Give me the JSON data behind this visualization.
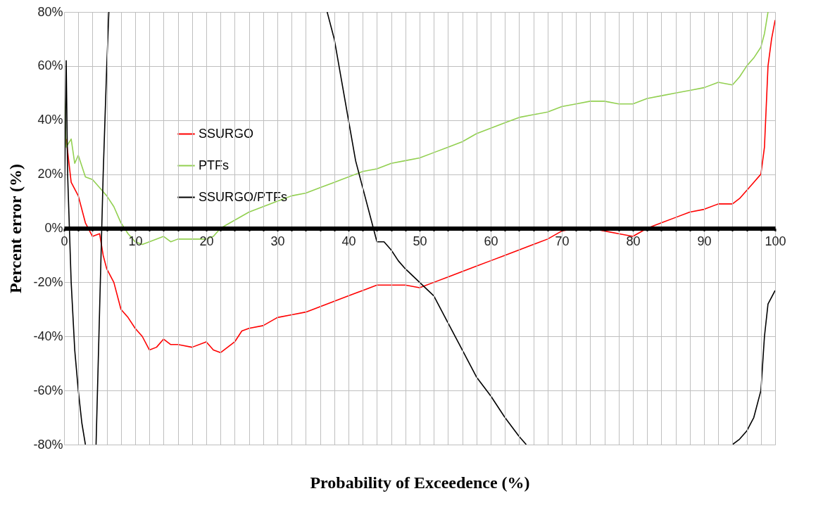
{
  "chart_data": {
    "type": "line",
    "xlabel": "Probability of Exceedence (%)",
    "ylabel": "Percent error (%)",
    "xlim": [
      0,
      100
    ],
    "ylim": [
      -80,
      80
    ],
    "xticks": [
      0,
      {
        "value": 2,
        "label": null
      },
      {
        "value": 4,
        "label": null
      },
      {
        "value": 6,
        "label": null
      },
      {
        "value": 8,
        "label": null
      },
      10,
      {
        "value": 12,
        "label": null
      },
      {
        "value": 14,
        "label": null
      },
      {
        "value": 16,
        "label": null
      },
      {
        "value": 18,
        "label": null
      },
      20,
      {
        "value": 22,
        "label": null
      },
      {
        "value": 24,
        "label": null
      },
      {
        "value": 26,
        "label": null
      },
      {
        "value": 28,
        "label": null
      },
      30,
      {
        "value": 32,
        "label": null
      },
      {
        "value": 34,
        "label": null
      },
      {
        "value": 36,
        "label": null
      },
      {
        "value": 38,
        "label": null
      },
      40,
      {
        "value": 42,
        "label": null
      },
      {
        "value": 44,
        "label": null
      },
      {
        "value": 46,
        "label": null
      },
      {
        "value": 48,
        "label": null
      },
      50,
      {
        "value": 52,
        "label": null
      },
      {
        "value": 54,
        "label": null
      },
      {
        "value": 56,
        "label": null
      },
      {
        "value": 58,
        "label": null
      },
      60,
      {
        "value": 62,
        "label": null
      },
      {
        "value": 64,
        "label": null
      },
      {
        "value": 66,
        "label": null
      },
      {
        "value": 68,
        "label": null
      },
      70,
      {
        "value": 72,
        "label": null
      },
      {
        "value": 74,
        "label": null
      },
      {
        "value": 76,
        "label": null
      },
      {
        "value": 78,
        "label": null
      },
      80,
      {
        "value": 82,
        "label": null
      },
      {
        "value": 84,
        "label": null
      },
      {
        "value": 86,
        "label": null
      },
      {
        "value": 88,
        "label": null
      },
      90,
      {
        "value": 92,
        "label": null
      },
      {
        "value": 94,
        "label": null
      },
      {
        "value": 96,
        "label": null
      },
      {
        "value": 98,
        "label": null
      },
      100
    ],
    "yticks": [
      {
        "value": -80,
        "label": "-80%"
      },
      {
        "value": -60,
        "label": "-60%"
      },
      {
        "value": -40,
        "label": "-40%"
      },
      {
        "value": -20,
        "label": "-20%"
      },
      {
        "value": 0,
        "label": "0%"
      },
      {
        "value": 20,
        "label": "20%"
      },
      {
        "value": 40,
        "label": "40%"
      },
      {
        "value": 60,
        "label": "60%"
      },
      {
        "value": 80,
        "label": "80%"
      }
    ],
    "grid": true,
    "legend": "top left",
    "marker": "none",
    "line_style": "solid",
    "series": [
      {
        "name": "SSURGO",
        "color": "#ff0000",
        "x": [
          0.3,
          1,
          2,
          3,
          4,
          5,
          5.5,
          6,
          7,
          8,
          9,
          10,
          11,
          12,
          13,
          14,
          15,
          16,
          18,
          20,
          21,
          22,
          23,
          24,
          25,
          26,
          28,
          30,
          32,
          34,
          36,
          38,
          40,
          42,
          44,
          46,
          48,
          50,
          52,
          54,
          56,
          58,
          60,
          62,
          64,
          66,
          68,
          70,
          72,
          74,
          76,
          78,
          80,
          82,
          84,
          86,
          88,
          90,
          92,
          94,
          95,
          96,
          97,
          98,
          98.5,
          99,
          99.5,
          100
        ],
        "values": [
          33,
          17,
          12,
          2,
          -3,
          -2,
          -10,
          -15,
          -20,
          -30,
          -33,
          -37,
          -40,
          -45,
          -44,
          -41,
          -43,
          -43,
          -44,
          -42,
          -45,
          -46,
          -44,
          -42,
          -38,
          -37,
          -36,
          -33,
          -32,
          -31,
          -29,
          -27,
          -25,
          -23,
          -21,
          -21,
          -21,
          -22,
          -20,
          -18,
          -16,
          -14,
          -12,
          -10,
          -8,
          -6,
          -4,
          -1,
          0,
          0,
          -1,
          -2,
          -3,
          0,
          2,
          4,
          6,
          7,
          9,
          9,
          11,
          14,
          17,
          20,
          30,
          60,
          70,
          77
        ]
      },
      {
        "name": "PTFs",
        "color": "#92d050",
        "x": [
          0,
          0.3,
          1,
          1.5,
          2,
          3,
          4,
          5,
          6,
          7,
          8,
          9,
          10,
          11,
          12,
          14,
          15,
          16,
          18,
          20,
          21,
          22,
          24,
          26,
          28,
          30,
          32,
          34,
          36,
          38,
          40,
          42,
          44,
          46,
          48,
          50,
          52,
          54,
          56,
          58,
          60,
          62,
          64,
          66,
          68,
          70,
          72,
          74,
          76,
          78,
          80,
          82,
          84,
          86,
          88,
          90,
          92,
          94,
          95,
          96,
          97,
          98,
          98.5,
          99
        ],
        "values": [
          50,
          30,
          33,
          24,
          27,
          19,
          18,
          15,
          12,
          8,
          2,
          -2,
          -5,
          -6,
          -5,
          -3,
          -5,
          -4,
          -4,
          -4,
          -3,
          0,
          3,
          6,
          8,
          10,
          12,
          13,
          15,
          17,
          19,
          21,
          22,
          24,
          25,
          26,
          28,
          30,
          32,
          35,
          37,
          39,
          41,
          42,
          43,
          45,
          46,
          47,
          47,
          46,
          46,
          48,
          49,
          50,
          51,
          52,
          54,
          53,
          56,
          60,
          63,
          67,
          72,
          80
        ]
      },
      {
        "name": "SSURGO/PTFs",
        "color": "#000000",
        "x": [
          0,
          0.3,
          0.5,
          1,
          1.5,
          2,
          2.5,
          3,
          3.7,
          4.5,
          5,
          5.5,
          6,
          6.3,
          20,
          37,
          38,
          39,
          40,
          41,
          42,
          43,
          44,
          45,
          46,
          47,
          48,
          50,
          52,
          54,
          56,
          58,
          60,
          62,
          64,
          65,
          80,
          94,
          95,
          96,
          97,
          98,
          98.5,
          99,
          100
        ],
        "values": [
          0,
          62,
          20,
          -20,
          -45,
          -60,
          -72,
          -80,
          null,
          -80,
          -30,
          20,
          60,
          80,
          null,
          80,
          70,
          55,
          40,
          25,
          15,
          5,
          -5,
          -5,
          -8,
          -12,
          -15,
          -20,
          -25,
          -35,
          -45,
          -55,
          -62,
          -70,
          -77,
          -80,
          null,
          -80,
          -78,
          -75,
          -70,
          -60,
          -40,
          -28,
          -23
        ]
      }
    ]
  }
}
